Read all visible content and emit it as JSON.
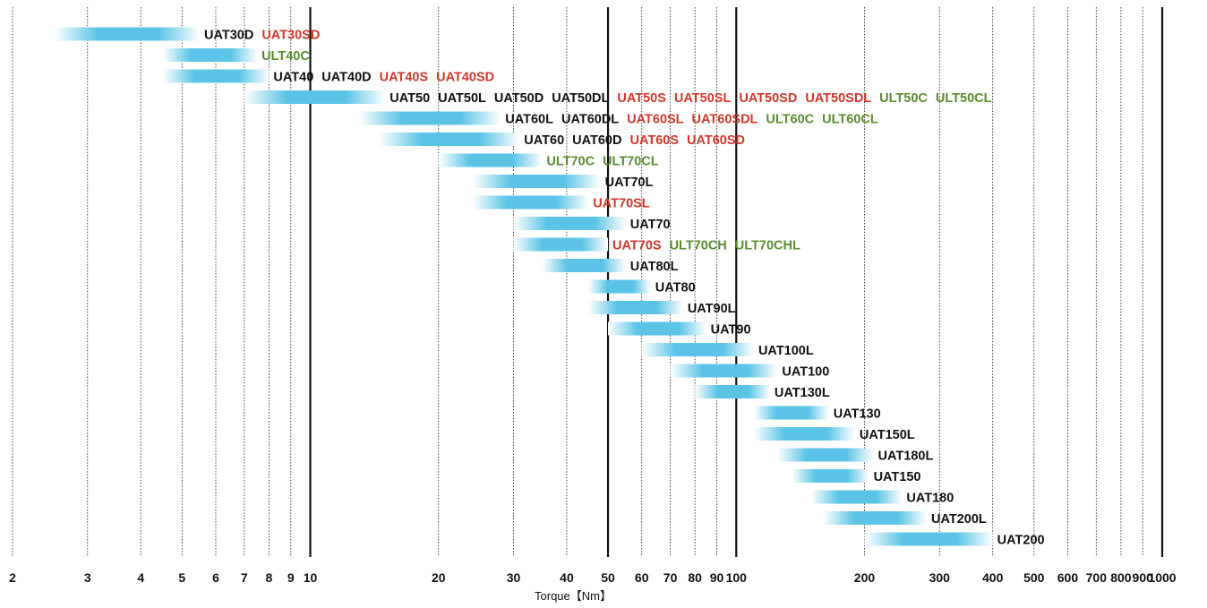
{
  "chart_data": {
    "type": "bar",
    "orientation": "horizontal-range",
    "xlabel": "Torque【Nm】",
    "xscale": "log",
    "xlim": [
      2,
      1000
    ],
    "x_ticks": [
      "2",
      "3",
      "4",
      "5",
      "6",
      "7",
      "8",
      "9",
      "10",
      "20",
      "30",
      "40",
      "50",
      "60",
      "70",
      "80",
      "90",
      "100",
      "200",
      "300",
      "400",
      "500",
      "600",
      "700",
      "800",
      "900",
      "1000"
    ],
    "x_tick_values": [
      2,
      3,
      4,
      5,
      6,
      7,
      8,
      9,
      10,
      20,
      30,
      40,
      50,
      60,
      70,
      80,
      90,
      100,
      200,
      300,
      400,
      500,
      600,
      700,
      800,
      900,
      1000
    ],
    "major_gridlines": [
      10,
      50,
      100,
      1000
    ],
    "colors": {
      "bar": "#5bc4e6",
      "black": "#111111",
      "red": "#d2372c",
      "green": "#5a8c2e"
    },
    "rows": [
      {
        "start": 2.5,
        "end": 5.5,
        "labels": [
          {
            "text": "UAT30D",
            "color": "black"
          },
          {
            "text": "UAT30SD",
            "color": "red"
          }
        ]
      },
      {
        "start": 4.5,
        "end": 7.5,
        "labels": [
          {
            "text": "ULT40C",
            "color": "green"
          }
        ]
      },
      {
        "start": 4.5,
        "end": 8.0,
        "labels": [
          {
            "text": "UAT40",
            "color": "black"
          },
          {
            "text": "UAT40D",
            "color": "black"
          },
          {
            "text": "UAT40S",
            "color": "red"
          },
          {
            "text": "UAT40SD",
            "color": "red"
          }
        ]
      },
      {
        "start": 7.0,
        "end": 15.0,
        "labels": [
          {
            "text": "UAT50",
            "color": "black"
          },
          {
            "text": "UAT50L",
            "color": "black"
          },
          {
            "text": "UAT50D",
            "color": "black"
          },
          {
            "text": "UAT50DL",
            "color": "black"
          },
          {
            "text": "UAT50S",
            "color": "red"
          },
          {
            "text": "UAT50SL",
            "color": "red"
          },
          {
            "text": "UAT50SD",
            "color": "red"
          },
          {
            "text": "UAT50SDL",
            "color": "red"
          },
          {
            "text": "ULT50C",
            "color": "green"
          },
          {
            "text": "ULT50CL",
            "color": "green"
          }
        ]
      },
      {
        "start": 13.0,
        "end": 28.0,
        "labels": [
          {
            "text": "UAT60L",
            "color": "black"
          },
          {
            "text": "UAT60DL",
            "color": "black"
          },
          {
            "text": "UAT60SL",
            "color": "red"
          },
          {
            "text": "UAT60SDL",
            "color": "red"
          },
          {
            "text": "ULT60C",
            "color": "green"
          },
          {
            "text": "ULT60CL",
            "color": "green"
          }
        ]
      },
      {
        "start": 14.5,
        "end": 31.0,
        "labels": [
          {
            "text": "UAT60",
            "color": "black"
          },
          {
            "text": "UAT60D",
            "color": "black"
          },
          {
            "text": "UAT60S",
            "color": "red"
          },
          {
            "text": "UAT60SD",
            "color": "red"
          }
        ]
      },
      {
        "start": 20.0,
        "end": 35.0,
        "labels": [
          {
            "text": "ULT70C",
            "color": "green"
          },
          {
            "text": "ULT70CL",
            "color": "green"
          }
        ]
      },
      {
        "start": 24.0,
        "end": 48.0,
        "labels": [
          {
            "text": "UAT70L",
            "color": "black"
          }
        ]
      },
      {
        "start": 24.0,
        "end": 45.0,
        "labels": [
          {
            "text": "UAT70SL",
            "color": "red"
          }
        ]
      },
      {
        "start": 30.0,
        "end": 55.0,
        "labels": [
          {
            "text": "UAT70",
            "color": "black"
          }
        ]
      },
      {
        "start": 30.0,
        "end": 50.0,
        "labels": [
          {
            "text": "UAT70S",
            "color": "red"
          },
          {
            "text": "ULT70CH",
            "color": "green"
          },
          {
            "text": "ULT70CHL",
            "color": "green"
          }
        ]
      },
      {
        "start": 35.0,
        "end": 55.0,
        "labels": [
          {
            "text": "UAT80L",
            "color": "black"
          }
        ]
      },
      {
        "start": 45.0,
        "end": 63.0,
        "labels": [
          {
            "text": "UAT80",
            "color": "black"
          }
        ]
      },
      {
        "start": 45.0,
        "end": 75.0,
        "labels": [
          {
            "text": "UAT90L",
            "color": "black"
          }
        ]
      },
      {
        "start": 50.0,
        "end": 85.0,
        "labels": [
          {
            "text": "UAT90",
            "color": "black"
          }
        ]
      },
      {
        "start": 60.0,
        "end": 110.0,
        "labels": [
          {
            "text": "UAT100L",
            "color": "black"
          }
        ]
      },
      {
        "start": 70.0,
        "end": 125.0,
        "labels": [
          {
            "text": "UAT100",
            "color": "black"
          }
        ]
      },
      {
        "start": 80.0,
        "end": 120.0,
        "labels": [
          {
            "text": "UAT130L",
            "color": "black"
          }
        ]
      },
      {
        "start": 110.0,
        "end": 165.0,
        "labels": [
          {
            "text": "UAT130",
            "color": "black"
          }
        ]
      },
      {
        "start": 110.0,
        "end": 190.0,
        "labels": [
          {
            "text": "UAT150L",
            "color": "black"
          }
        ]
      },
      {
        "start": 125.0,
        "end": 210.0,
        "labels": [
          {
            "text": "UAT180L",
            "color": "black"
          }
        ]
      },
      {
        "start": 135.0,
        "end": 205.0,
        "labels": [
          {
            "text": "UAT150",
            "color": "black"
          }
        ]
      },
      {
        "start": 150.0,
        "end": 245.0,
        "labels": [
          {
            "text": "UAT180",
            "color": "black"
          }
        ]
      },
      {
        "start": 160.0,
        "end": 280.0,
        "labels": [
          {
            "text": "UAT200L",
            "color": "black"
          }
        ]
      },
      {
        "start": 200.0,
        "end": 400.0,
        "labels": [
          {
            "text": "UAT200",
            "color": "black"
          }
        ]
      }
    ]
  }
}
